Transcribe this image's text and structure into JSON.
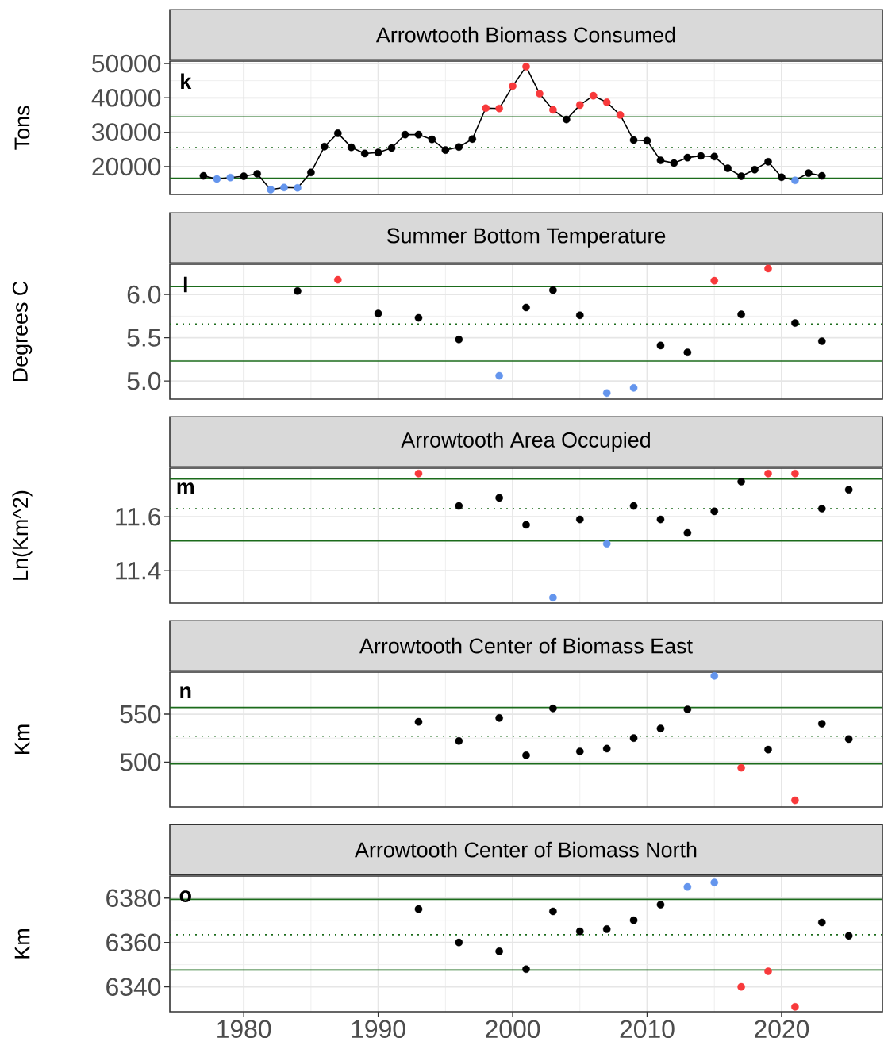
{
  "chart_data": [
    {
      "type": "line",
      "title": "Arrowtooth Biomass Consumed",
      "ylabel": "Tons",
      "annotations": [
        "k"
      ],
      "color": "#000000",
      "marker": "circle",
      "line_style": "solid",
      "grid": true,
      "tick_labels": "y",
      "x": [
        1977,
        1978,
        1979,
        1980,
        1981,
        1982,
        1983,
        1984,
        1985,
        1986,
        1987,
        1988,
        1989,
        1990,
        1991,
        1992,
        1993,
        1994,
        1995,
        1996,
        1997,
        1998,
        1999,
        2000,
        2001,
        2002,
        2003,
        2004,
        2005,
        2006,
        2007,
        2008,
        2009,
        2010,
        2011,
        2012,
        2013,
        2014,
        2015,
        2016,
        2017,
        2018,
        2019,
        2020,
        2021,
        2022,
        2023
      ],
      "values": [
        17300,
        16400,
        16800,
        17200,
        17900,
        13300,
        13900,
        13800,
        18300,
        25800,
        29700,
        25600,
        23800,
        24100,
        25400,
        29300,
        29300,
        27900,
        24800,
        25700,
        28000,
        37000,
        36900,
        43400,
        49100,
        41200,
        36500,
        33700,
        37900,
        40600,
        38700,
        35000,
        27700,
        27500,
        21800,
        21000,
        22600,
        23100,
        22900,
        19500,
        17200,
        19100,
        21400,
        16900,
        16000,
        18100,
        17300
      ],
      "colors": [
        "#000000",
        "#6495ed",
        "#6495ed",
        "#000000",
        "#000000",
        "#6495ed",
        "#6495ed",
        "#6495ed",
        "#000000",
        "#000000",
        "#000000",
        "#000000",
        "#000000",
        "#000000",
        "#000000",
        "#000000",
        "#000000",
        "#000000",
        "#000000",
        "#000000",
        "#000000",
        "#f8393b",
        "#f8393b",
        "#f8393b",
        "#f8393b",
        "#f8393b",
        "#f8393b",
        "#000000",
        "#f8393b",
        "#f8393b",
        "#f8393b",
        "#f8393b",
        "#000000",
        "#000000",
        "#000000",
        "#000000",
        "#000000",
        "#000000",
        "#000000",
        "#000000",
        "#000000",
        "#000000",
        "#000000",
        "#000000",
        "#6495ed",
        "#000000",
        "#000000"
      ],
      "xlim": [
        1974.5,
        2027.5
      ],
      "ylim": [
        11900,
        50700
      ],
      "xticks": [
        1980,
        1990,
        2000,
        2010,
        2020
      ],
      "yticks": [
        20000,
        30000,
        40000,
        50000
      ],
      "ref_lines": [
        {
          "axis": "y",
          "value": 34460,
          "color": "#1b6b1b",
          "line_style": "solid"
        },
        {
          "axis": "y",
          "value": 25540,
          "color": "#1b6b1b",
          "line_style": "dotted"
        },
        {
          "axis": "y",
          "value": 16620,
          "color": "#1b6b1b",
          "line_style": "solid"
        }
      ]
    },
    {
      "type": "scatter",
      "title": "Summer Bottom Temperature",
      "ylabel": "Degrees C",
      "annotations": [
        "l"
      ],
      "marker": "circle",
      "grid": true,
      "tick_labels": "y",
      "x": [
        1984,
        1987,
        1990,
        1993,
        1996,
        1999,
        2001,
        2003,
        2005,
        2007,
        2009,
        2011,
        2013,
        2015,
        2017,
        2019,
        2021,
        2023
      ],
      "values": [
        6.04,
        6.17,
        5.78,
        5.73,
        5.48,
        5.06,
        5.85,
        6.05,
        5.76,
        4.86,
        4.92,
        5.41,
        5.33,
        6.16,
        5.77,
        6.3,
        5.67,
        5.46
      ],
      "colors": [
        "#000000",
        "#f8393b",
        "#000000",
        "#000000",
        "#000000",
        "#6495ed",
        "#000000",
        "#000000",
        "#000000",
        "#6495ed",
        "#6495ed",
        "#000000",
        "#000000",
        "#f8393b",
        "#000000",
        "#f8393b",
        "#000000",
        "#000000"
      ],
      "xlim": [
        1974.5,
        2027.5
      ],
      "ylim": [
        4.79,
        6.35
      ],
      "xticks": [
        1980,
        1990,
        2000,
        2010,
        2020
      ],
      "yticks": [
        {
          "value": 5,
          "label": "5.0"
        },
        5.5,
        {
          "value": 6,
          "label": "6.0"
        }
      ],
      "ref_lines": [
        {
          "axis": "y",
          "value": 6.09,
          "color": "#1b6b1b",
          "line_style": "solid"
        },
        {
          "axis": "y",
          "value": 5.66,
          "color": "#1b6b1b",
          "line_style": "dotted"
        },
        {
          "axis": "y",
          "value": 5.23,
          "color": "#1b6b1b",
          "line_style": "solid"
        }
      ]
    },
    {
      "type": "scatter",
      "title": "Arrowtooth Area Occupied",
      "ylabel": "Ln(Km^2)",
      "annotations": [
        "m"
      ],
      "marker": "circle",
      "grid": true,
      "tick_labels": "y",
      "x": [
        1993,
        1996,
        1999,
        2001,
        2003,
        2005,
        2007,
        2009,
        2011,
        2013,
        2015,
        2017,
        2019,
        2021,
        2023,
        2025
      ],
      "values": [
        11.76,
        11.64,
        11.67,
        11.57,
        11.3,
        11.59,
        11.5,
        11.64,
        11.59,
        11.54,
        11.62,
        11.73,
        11.76,
        11.76,
        11.63,
        11.7
      ],
      "colors": [
        "#f8393b",
        "#000000",
        "#000000",
        "#000000",
        "#6495ed",
        "#000000",
        "#6495ed",
        "#000000",
        "#000000",
        "#000000",
        "#000000",
        "#000000",
        "#f8393b",
        "#f8393b",
        "#000000",
        "#000000"
      ],
      "xlim": [
        1974.5,
        2027.5
      ],
      "ylim": [
        11.28,
        11.78
      ],
      "xticks": [
        1980,
        1990,
        2000,
        2010,
        2020
      ],
      "yticks": [
        11.4,
        11.6
      ],
      "ref_lines": [
        {
          "axis": "y",
          "value": 11.74,
          "color": "#1b6b1b",
          "line_style": "solid"
        },
        {
          "axis": "y",
          "value": 11.63,
          "color": "#1b6b1b",
          "line_style": "dotted"
        },
        {
          "axis": "y",
          "value": 11.51,
          "color": "#1b6b1b",
          "line_style": "solid"
        }
      ]
    },
    {
      "type": "scatter",
      "title": "Arrowtooth Center of Biomass East",
      "ylabel": "Km",
      "annotations": [
        "n"
      ],
      "marker": "circle",
      "grid": true,
      "tick_labels": "y",
      "x": [
        1993,
        1996,
        1999,
        2001,
        2003,
        2005,
        2007,
        2009,
        2011,
        2013,
        2015,
        2017,
        2019,
        2021,
        2023,
        2025
      ],
      "values": [
        542,
        522,
        546,
        507,
        556,
        511,
        514,
        525,
        535,
        555,
        590,
        494,
        513,
        460,
        540,
        524
      ],
      "colors": [
        "#000000",
        "#000000",
        "#000000",
        "#000000",
        "#000000",
        "#000000",
        "#000000",
        "#000000",
        "#000000",
        "#000000",
        "#6495ed",
        "#f8393b",
        "#000000",
        "#f8393b",
        "#000000",
        "#000000"
      ],
      "xlim": [
        1974.5,
        2027.5
      ],
      "ylim": [
        453,
        594
      ],
      "xticks": [
        1980,
        1990,
        2000,
        2010,
        2020
      ],
      "yticks": [
        500,
        550
      ],
      "ref_lines": [
        {
          "axis": "y",
          "value": 557,
          "color": "#1b6b1b",
          "line_style": "solid"
        },
        {
          "axis": "y",
          "value": 527,
          "color": "#1b6b1b",
          "line_style": "dotted"
        },
        {
          "axis": "y",
          "value": 498,
          "color": "#1b6b1b",
          "line_style": "solid"
        }
      ]
    },
    {
      "type": "scatter",
      "title": "Arrowtooth Center of Biomass North",
      "ylabel": "Km",
      "annotations": [
        "o"
      ],
      "marker": "circle",
      "grid": true,
      "x": [
        1993,
        1996,
        1999,
        2001,
        2003,
        2005,
        2007,
        2009,
        2011,
        2013,
        2015,
        2017,
        2019,
        2021,
        2023,
        2025
      ],
      "values": [
        6375,
        6360,
        6356,
        6348,
        6374,
        6365,
        6366,
        6370,
        6377,
        6385,
        6387,
        6340,
        6347,
        6331,
        6369,
        6363
      ],
      "colors": [
        "#000000",
        "#000000",
        "#000000",
        "#000000",
        "#000000",
        "#000000",
        "#000000",
        "#000000",
        "#000000",
        "#6495ed",
        "#6495ed",
        "#f8393b",
        "#f8393b",
        "#f8393b",
        "#000000",
        "#000000"
      ],
      "xlim": [
        1974.5,
        2027.5
      ],
      "ylim": [
        6328.8,
        6389.9
      ],
      "xticks": [
        1980,
        1990,
        2000,
        2010,
        2020
      ],
      "yticks": [
        6340,
        6360,
        6380
      ],
      "ref_lines": [
        {
          "axis": "y",
          "value": 6379.4,
          "color": "#1b6b1b",
          "line_style": "solid"
        },
        {
          "axis": "y",
          "value": 6363.5,
          "color": "#1b6b1b",
          "line_style": "dotted"
        },
        {
          "axis": "y",
          "value": 6347.6,
          "color": "#1b6b1b",
          "line_style": "solid"
        }
      ]
    }
  ]
}
